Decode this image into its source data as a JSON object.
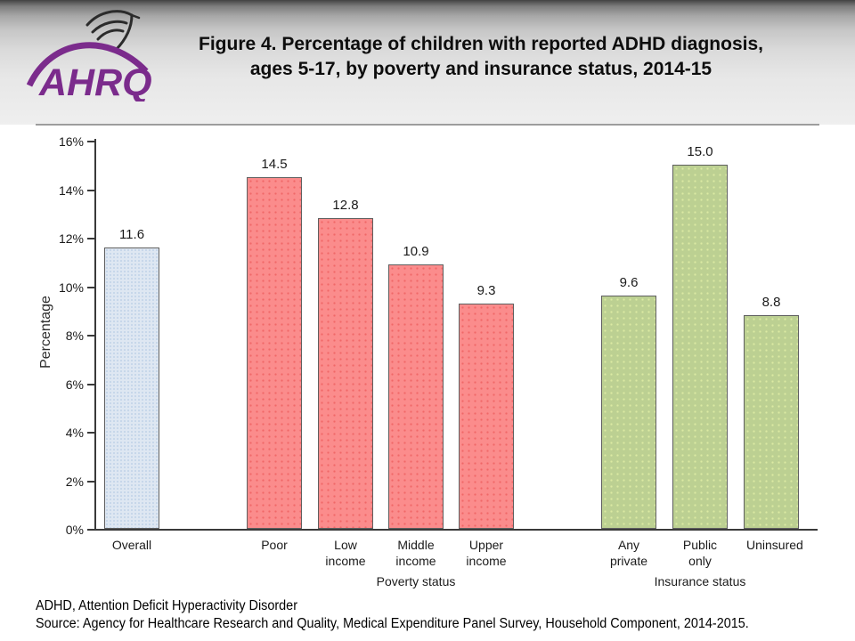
{
  "header": {
    "logo_org": "AHRQ",
    "logo_color": "#7B2B8C",
    "title_line1": "Figure 4. Percentage of children with reported ADHD diagnosis,",
    "title_line2": "ages 5-17, by poverty and insurance status, 2014-15"
  },
  "chart_data": {
    "type": "bar",
    "title": "Figure 4. Percentage of children with reported ADHD diagnosis, ages 5-17, by poverty and insurance status, 2014-15",
    "xlabel": "",
    "ylabel": "Percentage",
    "ylim": [
      0,
      16
    ],
    "ytick_step": 2,
    "ytick_suffix": "%",
    "grid": false,
    "value_label_decimals": 1,
    "legend": "none",
    "groups": [
      {
        "name": "",
        "bar_color": "#DEE7F2",
        "dot_color": "#C6D6EA",
        "categories": [
          "Overall"
        ],
        "values": [
          11.6
        ]
      },
      {
        "name": "Poverty status",
        "bar_color": "#FB8C8C",
        "dot_color": "#F06868",
        "categories": [
          "Poor",
          "Low income",
          "Middle income",
          "Upper income"
        ],
        "values": [
          14.5,
          12.8,
          10.9,
          9.3
        ]
      },
      {
        "name": "Insurance status",
        "bar_color": "#BCD092",
        "dot_color": "#DBE9A2",
        "categories": [
          "Any private",
          "Public only",
          "Uninsured"
        ],
        "values": [
          9.6,
          15.0,
          8.8
        ]
      }
    ]
  },
  "footnotes": {
    "line1": "ADHD, Attention Deficit Hyperactivity Disorder",
    "line2": "Source: Agency for Healthcare Research and Quality, Medical Expenditure Panel Survey, Household Component, 2014-2015."
  }
}
